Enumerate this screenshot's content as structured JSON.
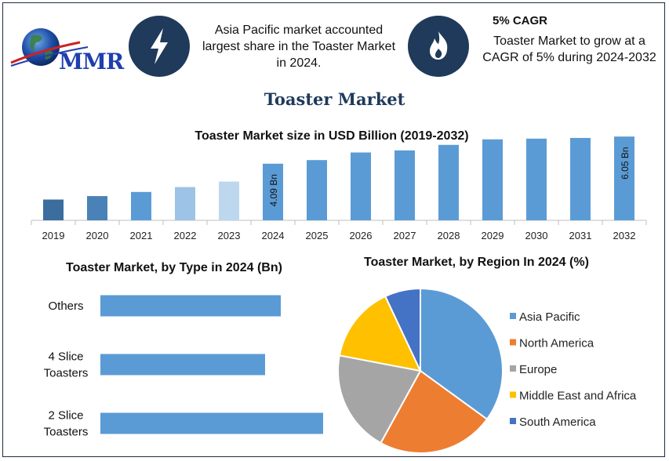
{
  "brand": {
    "name": "MMR"
  },
  "highlights": [
    {
      "icon": "lightning-icon",
      "text_lines": [
        "Asia Pacific market accounted",
        "largest share in the Toaster Market",
        "in 2024."
      ]
    },
    {
      "icon": "flame-icon",
      "title": "5% CAGR",
      "text_lines": [
        "Toaster Market to grow at a",
        "CAGR of 5% during 2024-2032"
      ]
    }
  ],
  "page_title": "Toaster Market",
  "colors": {
    "bar": "#5b9bd5",
    "navy": "#1f3a5a",
    "grid": "#d9d9d9"
  },
  "chart_data": [
    {
      "type": "bar",
      "title": "Toaster Market size in USD Billion (2019-2032)",
      "categories": [
        "2019",
        "2020",
        "2021",
        "2022",
        "2023",
        "2024",
        "2025",
        "2026",
        "2027",
        "2028",
        "2029",
        "2030",
        "2031",
        "2032"
      ],
      "values": [
        1.5,
        1.75,
        2.05,
        2.4,
        2.8,
        4.09,
        4.35,
        4.9,
        5.05,
        5.45,
        5.85,
        5.9,
        5.95,
        6.05
      ],
      "bar_colors": [
        "#3b6e9e",
        "#4a82b8",
        "#5b9bd5",
        "#9dc3e6",
        "#bdd7ee",
        "#5b9bd5",
        "#5b9bd5",
        "#5b9bd5",
        "#5b9bd5",
        "#5b9bd5",
        "#5b9bd5",
        "#5b9bd5",
        "#5b9bd5",
        "#5b9bd5"
      ],
      "data_labels": {
        "2024": "4.09 Bn",
        "2032": "6.05 Bn"
      },
      "ylim": [
        0,
        6.4
      ]
    },
    {
      "type": "bar",
      "orientation": "horizontal",
      "title": "Toaster Market, by Type in 2024 (Bn)",
      "categories": [
        [
          "Others"
        ],
        [
          "4 Slice",
          "Toasters"
        ],
        [
          "2 Slice",
          "Toasters"
        ]
      ],
      "values": [
        1.15,
        1.05,
        1.42
      ],
      "xlim": [
        0,
        1.5
      ]
    },
    {
      "type": "pie",
      "title": "Toaster Market, by Region In 2024 (%)",
      "labels": [
        "Asia Pacific",
        "North America",
        "Europe",
        "Middle East and Africa",
        "South America"
      ],
      "values": [
        35,
        23,
        20,
        15,
        7
      ],
      "colors": [
        "#5b9bd5",
        "#ed7d31",
        "#a5a5a5",
        "#ffc000",
        "#4472c4"
      ],
      "legend_position": "right"
    }
  ]
}
